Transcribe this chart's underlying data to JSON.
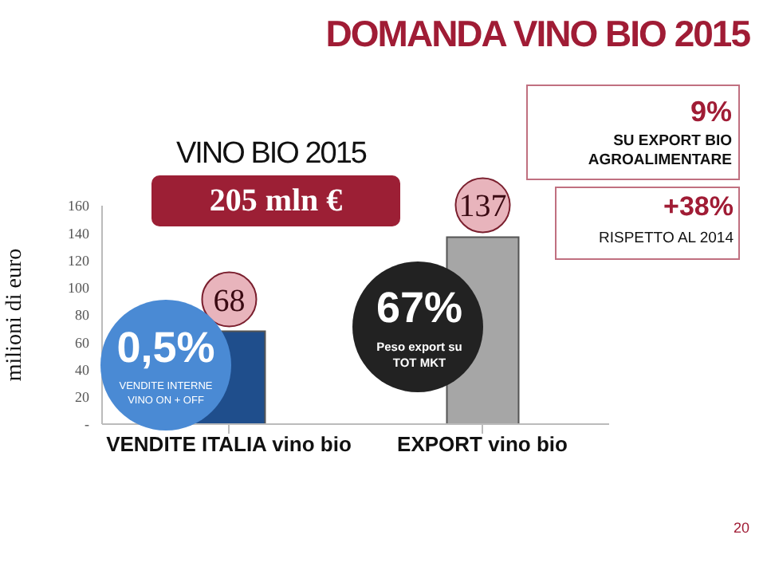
{
  "chart_data": {
    "type": "bar",
    "title": "DOMANDA VINO BIO 2015",
    "ylabel": "milioni di euro",
    "categories": [
      "VENDITE ITALIA vino bio",
      "EXPORT vino bio"
    ],
    "values": [
      68,
      137
    ],
    "colors": [
      "#1f4e8c",
      "#a6a6a6"
    ],
    "ylim": [
      0,
      160
    ],
    "yticks": [
      {
        "value": 0,
        "label": "-"
      },
      20,
      40,
      60,
      80,
      100,
      120,
      140,
      160
    ],
    "grid": false,
    "legend": false,
    "data_labels": true,
    "annotations": [
      "VINO BIO 2015",
      "205 mln €",
      "0,5%",
      "VENDITE INTERNE VINO ON + OFF",
      "67%",
      "Peso export su TOT MKT",
      "9%",
      "SU EXPORT BIO AGROALIMENTARE",
      "+38%",
      "RISPETTO AL 2014",
      "20"
    ]
  }
}
